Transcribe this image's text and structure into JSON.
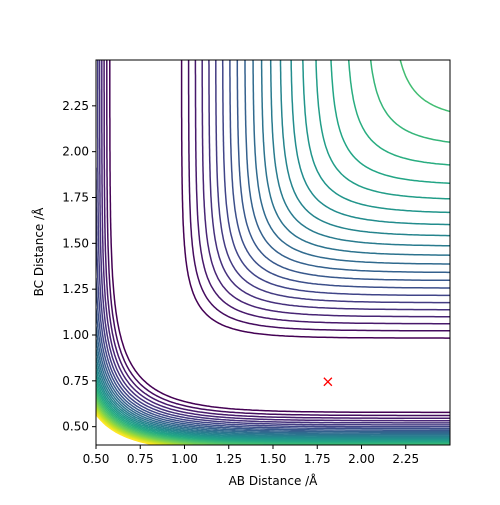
{
  "chart_data": {
    "type": "contour",
    "title": "",
    "xlabel": "AB Distance /Å",
    "ylabel": "BC Distance /Å",
    "xlim": [
      0.5,
      2.5
    ],
    "ylim": [
      0.4,
      2.5
    ],
    "xticks": [
      0.5,
      0.75,
      1.0,
      1.25,
      1.5,
      1.75,
      2.0,
      2.25
    ],
    "xtick_labels": [
      "0.50",
      "0.75",
      "1.00",
      "1.25",
      "1.50",
      "1.75",
      "2.00",
      "2.25"
    ],
    "yticks": [
      0.5,
      0.75,
      1.0,
      1.25,
      1.5,
      1.75,
      2.0,
      2.25
    ],
    "ytick_labels": [
      "0.50",
      "0.75",
      "1.00",
      "1.25",
      "1.50",
      "1.75",
      "2.00",
      "2.25"
    ],
    "colormap": "viridis",
    "surface": "LEPS potential energy surface (symmetric valley, minima along AB≈0.74 and BC≈0.74)",
    "contour_count": 30,
    "marker": {
      "symbol": "x",
      "color": "#ff0000",
      "x": 1.81,
      "y": 0.745
    },
    "grid": false,
    "legend": "none"
  }
}
